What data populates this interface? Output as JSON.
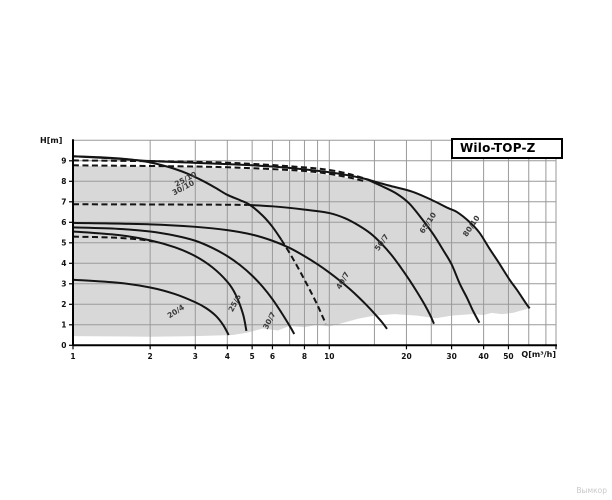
{
  "watermark": "Вымкор",
  "chart_data": {
    "type": "line",
    "title": "Wilo-TOP-Z",
    "xlabel": "Q[m³/h]",
    "ylabel": "H[m]",
    "x_scale": "log",
    "xlim": [
      1,
      76.6
    ],
    "ylim": [
      0,
      10
    ],
    "grid": true,
    "x_gridlines": [
      2,
      3,
      4,
      5,
      6,
      7,
      8,
      9,
      10,
      15,
      20,
      25,
      30,
      40,
      50,
      60,
      70
    ],
    "x_tick_labels": [
      {
        "label": "1",
        "value": 1
      },
      {
        "label": "2",
        "value": 2
      },
      {
        "label": "3",
        "value": 3
      },
      {
        "label": "4",
        "value": 4
      },
      {
        "label": "5",
        "value": 5
      },
      {
        "label": "6",
        "value": 6
      },
      {
        "label": "8",
        "value": 8
      },
      {
        "label": "10",
        "value": 10
      },
      {
        "label": "20",
        "value": 20
      },
      {
        "label": "30",
        "value": 30
      },
      {
        "label": "40",
        "value": 40
      },
      {
        "label": "50",
        "value": 50
      }
    ],
    "y_tick_labels": [
      {
        "label": "0",
        "value": 0
      },
      {
        "label": "1",
        "value": 1
      },
      {
        "label": "2",
        "value": 2
      },
      {
        "label": "3",
        "value": 3
      },
      {
        "label": "4",
        "value": 4
      },
      {
        "label": "5",
        "value": 5
      },
      {
        "label": "6",
        "value": 6
      },
      {
        "label": "7",
        "value": 7
      },
      {
        "label": "8",
        "value": 8
      },
      {
        "label": "9",
        "value": 9
      }
    ],
    "colors": {
      "grid": "#9a9a9a",
      "curve": "#141414",
      "fill": "#d8d8d8",
      "axis": "#000000",
      "curve_label": "#3a3a3a"
    },
    "series": [
      {
        "name": "25/10-30/10 head curve",
        "dashed": false,
        "points": [
          [
            1,
            9.22
          ],
          [
            1.3,
            9.17
          ],
          [
            1.6,
            9.09
          ],
          [
            1.9,
            8.97
          ],
          [
            2.2,
            8.8
          ],
          [
            2.5,
            8.6
          ],
          [
            2.8,
            8.37
          ],
          [
            3.2,
            8.03
          ],
          [
            3.6,
            7.68
          ],
          [
            4.0,
            7.34
          ],
          [
            4.5,
            7.07
          ],
          [
            4.9,
            6.85
          ],
          [
            5.5,
            6.32
          ],
          [
            6.0,
            5.78
          ],
          [
            6.5,
            5.15
          ]
        ]
      },
      {
        "name": "25/10-30/10 dashed tail",
        "dashed": true,
        "points": [
          [
            6.5,
            5.15
          ],
          [
            7.0,
            4.5
          ],
          [
            7.5,
            3.85
          ],
          [
            8.0,
            3.2
          ],
          [
            8.5,
            2.57
          ],
          [
            9.0,
            1.95
          ],
          [
            9.4,
            1.42
          ],
          [
            9.7,
            1.05
          ]
        ]
      },
      {
        "name": "upper envelope",
        "dashed": false,
        "points": [
          [
            1,
            9.22
          ],
          [
            1.5,
            9.1
          ],
          [
            2,
            8.99
          ],
          [
            3,
            8.9
          ],
          [
            4,
            8.84
          ],
          [
            5,
            8.78
          ],
          [
            6,
            8.72
          ],
          [
            8,
            8.58
          ],
          [
            10,
            8.44
          ],
          [
            12,
            8.28
          ],
          [
            14,
            8.1
          ]
        ]
      },
      {
        "name": "dashed speed line upper",
        "dashed": true,
        "points": [
          [
            1,
            9.02
          ],
          [
            3,
            8.95
          ],
          [
            5,
            8.85
          ],
          [
            8,
            8.68
          ],
          [
            10,
            8.55
          ],
          [
            12,
            8.35
          ],
          [
            14,
            8.1
          ]
        ]
      },
      {
        "name": "dashed speed line lower",
        "dashed": true,
        "points": [
          [
            1,
            8.78
          ],
          [
            3,
            8.72
          ],
          [
            5,
            8.64
          ],
          [
            8,
            8.5
          ],
          [
            10,
            8.36
          ],
          [
            12,
            8.18
          ],
          [
            13.8,
            8.0
          ]
        ]
      },
      {
        "name": "80/10",
        "dashed": false,
        "points": [
          [
            14,
            8.1
          ],
          [
            17,
            7.8
          ],
          [
            21,
            7.5
          ],
          [
            25,
            7.1
          ],
          [
            29,
            6.7
          ],
          [
            31.5,
            6.5
          ],
          [
            35,
            6.05
          ],
          [
            38.5,
            5.5
          ],
          [
            42,
            4.75
          ],
          [
            46,
            4.0
          ],
          [
            50.5,
            3.2
          ],
          [
            54,
            2.7
          ],
          [
            58.5,
            2.05
          ],
          [
            60.5,
            1.8
          ]
        ]
      },
      {
        "name": "65/10",
        "dashed": false,
        "points": [
          [
            14,
            8.1
          ],
          [
            16,
            7.77
          ],
          [
            18.3,
            7.4
          ],
          [
            20.5,
            6.92
          ],
          [
            23.2,
            6.1
          ],
          [
            25.5,
            5.4
          ],
          [
            27.8,
            4.65
          ],
          [
            30,
            3.95
          ],
          [
            32.3,
            3.0
          ],
          [
            34.5,
            2.3
          ],
          [
            36.3,
            1.7
          ],
          [
            38.5,
            1.1
          ]
        ]
      },
      {
        "name": "50/7 dashed head",
        "dashed": true,
        "points": [
          [
            1,
            6.88
          ],
          [
            2,
            6.87
          ],
          [
            3.5,
            6.86
          ],
          [
            4.8,
            6.85
          ]
        ]
      },
      {
        "name": "50/7",
        "dashed": false,
        "points": [
          [
            4.8,
            6.85
          ],
          [
            6,
            6.78
          ],
          [
            8,
            6.62
          ],
          [
            10,
            6.45
          ],
          [
            11.5,
            6.2
          ],
          [
            13,
            5.85
          ],
          [
            14.5,
            5.45
          ],
          [
            16,
            4.95
          ],
          [
            17.5,
            4.4
          ],
          [
            19,
            3.8
          ],
          [
            20.5,
            3.2
          ],
          [
            22,
            2.6
          ],
          [
            23.5,
            2.0
          ],
          [
            24.8,
            1.45
          ],
          [
            25.6,
            1.05
          ]
        ]
      },
      {
        "name": "40/7",
        "dashed": false,
        "points": [
          [
            1,
            5.97
          ],
          [
            2,
            5.9
          ],
          [
            3,
            5.78
          ],
          [
            4,
            5.62
          ],
          [
            5,
            5.4
          ],
          [
            6,
            5.1
          ],
          [
            7,
            4.75
          ],
          [
            8,
            4.35
          ],
          [
            9,
            3.95
          ],
          [
            10,
            3.55
          ],
          [
            11,
            3.15
          ],
          [
            12,
            2.75
          ],
          [
            13,
            2.35
          ],
          [
            14,
            1.95
          ],
          [
            15,
            1.55
          ],
          [
            16,
            1.15
          ],
          [
            16.8,
            0.8
          ]
        ]
      },
      {
        "name": "30/7",
        "dashed": false,
        "points": [
          [
            1,
            5.75
          ],
          [
            1.5,
            5.68
          ],
          [
            2,
            5.55
          ],
          [
            2.5,
            5.35
          ],
          [
            3,
            5.1
          ],
          [
            3.5,
            4.75
          ],
          [
            4,
            4.35
          ],
          [
            4.5,
            3.9
          ],
          [
            5,
            3.4
          ],
          [
            5.5,
            2.85
          ],
          [
            6,
            2.25
          ],
          [
            6.5,
            1.6
          ],
          [
            7,
            0.95
          ],
          [
            7.3,
            0.55
          ]
        ]
      },
      {
        "name": "25/6",
        "dashed": false,
        "points": [
          [
            1,
            5.55
          ],
          [
            1.5,
            5.38
          ],
          [
            2,
            5.12
          ],
          [
            2.5,
            4.78
          ],
          [
            3,
            4.35
          ],
          [
            3.5,
            3.8
          ],
          [
            4,
            3.1
          ],
          [
            4.3,
            2.5
          ],
          [
            4.6,
            1.55
          ],
          [
            4.75,
            0.7
          ]
        ]
      },
      {
        "name": "dashed speed line low",
        "dashed": true,
        "points": [
          [
            1,
            5.3
          ],
          [
            1.4,
            5.26
          ],
          [
            1.8,
            5.17
          ],
          [
            2.05,
            5.07
          ]
        ]
      },
      {
        "name": "20/4",
        "dashed": false,
        "points": [
          [
            1,
            3.2
          ],
          [
            1.5,
            3.05
          ],
          [
            2,
            2.82
          ],
          [
            2.5,
            2.5
          ],
          [
            3,
            2.1
          ],
          [
            3.3,
            1.82
          ],
          [
            3.6,
            1.45
          ],
          [
            3.85,
            1.0
          ],
          [
            4.05,
            0.5
          ]
        ]
      }
    ],
    "curve_labels": [
      {
        "text": "25/10",
        "q": 2.78,
        "h": 8.0,
        "rot": -28
      },
      {
        "text": "30/10",
        "q": 2.72,
        "h": 7.58,
        "rot": -28
      },
      {
        "text": "65/10",
        "q": 24.7,
        "h": 5.9,
        "rot": -56
      },
      {
        "text": "80/10",
        "q": 36.5,
        "h": 5.75,
        "rot": -56
      },
      {
        "text": "50/7",
        "q": 16.3,
        "h": 4.95,
        "rot": -55
      },
      {
        "text": "40/7",
        "q": 11.5,
        "h": 3.1,
        "rot": -60
      },
      {
        "text": "30/7",
        "q": 5.95,
        "h": 1.15,
        "rot": -62
      },
      {
        "text": "25/6",
        "q": 4.36,
        "h": 2.0,
        "rot": -62
      },
      {
        "text": "20/4",
        "q": 2.55,
        "h": 1.55,
        "rot": -33
      }
    ],
    "operating_region_outline": [
      [
        1,
        8.75
      ],
      [
        3,
        8.7
      ],
      [
        5,
        8.6
      ],
      [
        8,
        8.45
      ],
      [
        10,
        8.3
      ],
      [
        12,
        8.15
      ],
      [
        14,
        8.05
      ],
      [
        17,
        7.78
      ],
      [
        21,
        7.48
      ],
      [
        25,
        7.08
      ],
      [
        29,
        6.68
      ],
      [
        31.5,
        6.48
      ],
      [
        35,
        6.03
      ],
      [
        38.5,
        5.48
      ],
      [
        42,
        4.73
      ],
      [
        46,
        3.98
      ],
      [
        50.5,
        3.18
      ],
      [
        54,
        2.68
      ],
      [
        58.5,
        2.03
      ],
      [
        60.5,
        1.8
      ],
      [
        57,
        1.72
      ],
      [
        52,
        1.58
      ],
      [
        47,
        1.52
      ],
      [
        43,
        1.58
      ],
      [
        40,
        1.48
      ],
      [
        36,
        1.52
      ],
      [
        30,
        1.45
      ],
      [
        26,
        1.32
      ],
      [
        22,
        1.45
      ],
      [
        18,
        1.52
      ],
      [
        15,
        1.45
      ],
      [
        13,
        1.3
      ],
      [
        11,
        1.05
      ],
      [
        10,
        0.92
      ],
      [
        9,
        1.0
      ],
      [
        8,
        0.88
      ],
      [
        7,
        0.95
      ],
      [
        6.3,
        0.72
      ],
      [
        5.5,
        0.82
      ],
      [
        4.8,
        0.62
      ],
      [
        4.2,
        0.5
      ],
      [
        3,
        0.45
      ],
      [
        2,
        0.42
      ],
      [
        1,
        0.45
      ]
    ]
  }
}
